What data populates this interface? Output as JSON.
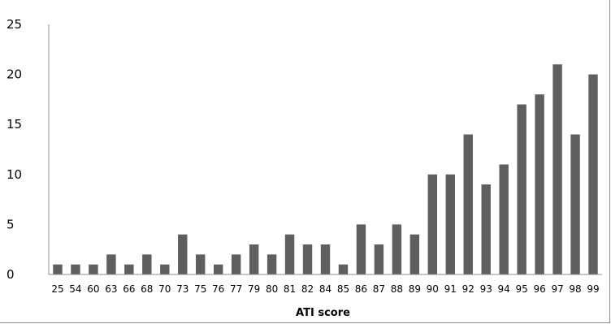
{
  "chart_data": {
    "type": "bar",
    "title": "",
    "xlabel": "ATI score",
    "ylabel": "",
    "ylim": [
      0,
      25
    ],
    "yticks": [
      0,
      5,
      10,
      15,
      20,
      25
    ],
    "grid": false,
    "legend": "none",
    "bar_color": "#5f5f5f",
    "categories": [
      "25",
      "54",
      "60",
      "63",
      "66",
      "68",
      "70",
      "73",
      "75",
      "76",
      "77",
      "79",
      "80",
      "81",
      "82",
      "84",
      "85",
      "86",
      "87",
      "88",
      "89",
      "90",
      "91",
      "92",
      "93",
      "94",
      "95",
      "96",
      "97",
      "98",
      "99"
    ],
    "values": [
      1,
      1,
      1,
      2,
      1,
      2,
      1,
      4,
      2,
      1,
      2,
      3,
      2,
      4,
      3,
      3,
      1,
      5,
      3,
      5,
      4,
      10,
      10,
      14,
      9,
      11,
      17,
      18,
      21,
      14,
      20
    ]
  }
}
